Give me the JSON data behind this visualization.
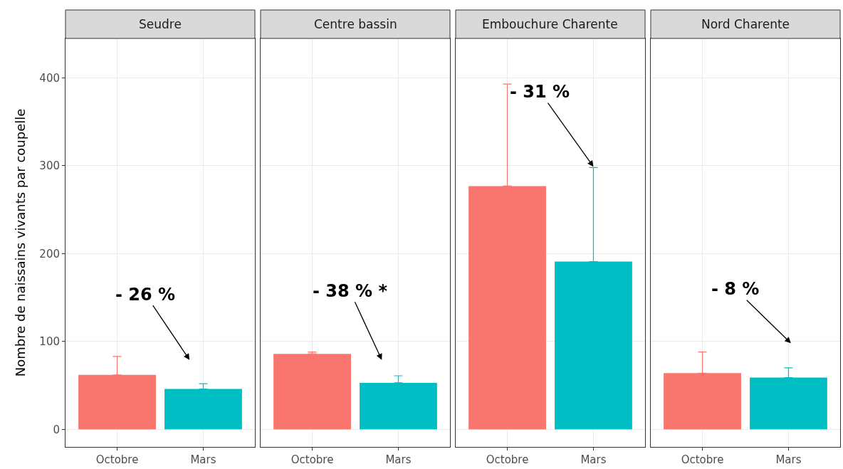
{
  "chart_data": [
    {
      "type": "bar",
      "title": "Seudre",
      "ylabel": "Nombre de naissains vivants par coupelle",
      "categories": [
        "Octobre",
        "Mars"
      ],
      "values": [
        62,
        46
      ],
      "colors": [
        "#f8766d",
        "#00bfc4"
      ],
      "errors": [
        [
          62,
          83
        ],
        [
          46,
          52
        ]
      ],
      "ylim": [
        -20,
        445
      ],
      "yticks": [
        0,
        100,
        200,
        300,
        400
      ],
      "grid": true,
      "annotations": [
        "- 26 %"
      ]
    },
    {
      "type": "bar",
      "title": "Centre bassin",
      "categories": [
        "Octobre",
        "Mars"
      ],
      "values": [
        86,
        53
      ],
      "colors": [
        "#f8766d",
        "#00bfc4"
      ],
      "errors": [
        [
          86,
          88
        ],
        [
          53,
          61
        ]
      ],
      "ylim": [
        -20,
        445
      ],
      "yticks": [
        0,
        100,
        200,
        300,
        400
      ],
      "grid": true,
      "tick_labels": "x",
      "annotations": [
        "- 38 % *"
      ]
    },
    {
      "type": "bar",
      "title": "Embouchure Charente",
      "categories": [
        "Octobre",
        "Mars"
      ],
      "values": [
        277,
        191
      ],
      "colors": [
        "#f8766d",
        "#00bfc4"
      ],
      "errors": [
        [
          277,
          393
        ],
        [
          191,
          298
        ]
      ],
      "ylim": [
        -20,
        445
      ],
      "yticks": [
        0,
        100,
        200,
        300,
        400
      ],
      "grid": true,
      "tick_labels": "x",
      "annotations": [
        {
          "text": "- 31 %",
          "x": "Mars",
          "y": 299
        }
      ]
    },
    {
      "type": "bar",
      "title": "Nord Charente",
      "categories": [
        "Octobre",
        "Mars"
      ],
      "values": [
        64,
        59
      ],
      "colors": [
        "#f8766d",
        "#00bfc4"
      ],
      "errors": [
        [
          64,
          88
        ],
        [
          59,
          70
        ]
      ],
      "ylim": [
        -20,
        445
      ],
      "yticks": [
        0,
        100,
        200,
        300,
        400
      ],
      "grid": true,
      "tick_labels": "x",
      "annotations": [
        "- 8 %"
      ]
    }
  ]
}
